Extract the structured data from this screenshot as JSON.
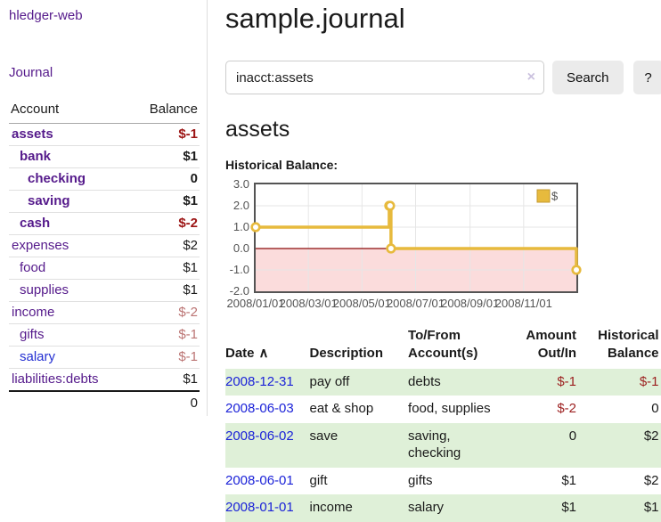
{
  "app": {
    "brand": "hledger-web",
    "nav": {
      "journal": "Journal"
    }
  },
  "sidebar": {
    "header": {
      "account": "Account",
      "balance": "Balance"
    },
    "accounts": [
      {
        "name": "assets",
        "balance": "$-1",
        "indent": 1,
        "bold": true,
        "neg": "strong"
      },
      {
        "name": "bank",
        "balance": "$1",
        "indent": 2,
        "bold": true,
        "neg": "none"
      },
      {
        "name": "checking",
        "balance": "0",
        "indent": 3,
        "bold": true,
        "neg": "none"
      },
      {
        "name": "saving",
        "balance": "$1",
        "indent": 3,
        "bold": true,
        "neg": "none"
      },
      {
        "name": "cash",
        "balance": "$-2",
        "indent": 2,
        "bold": true,
        "neg": "strong"
      },
      {
        "name": "expenses",
        "balance": "$2",
        "indent": 1,
        "bold": false,
        "neg": "none"
      },
      {
        "name": "food",
        "balance": "$1",
        "indent": 2,
        "bold": false,
        "neg": "none"
      },
      {
        "name": "supplies",
        "balance": "$1",
        "indent": 2,
        "bold": false,
        "neg": "none"
      },
      {
        "name": "income",
        "balance": "$-2",
        "indent": 1,
        "bold": false,
        "neg": "soft"
      },
      {
        "name": "gifts",
        "balance": "$-1",
        "indent": 2,
        "bold": false,
        "neg": "soft"
      },
      {
        "name": "salary",
        "balance": "$-1",
        "indent": 2,
        "bold": false,
        "neg": "soft",
        "blue": true
      },
      {
        "name": "liabilities:debts",
        "balance": "$1",
        "indent": 1,
        "bold": false,
        "neg": "none"
      }
    ],
    "total": "0"
  },
  "main": {
    "title": "sample.journal",
    "search": {
      "value": "inacct:assets",
      "clear_icon": "×",
      "button_label": "Search",
      "help_label": "?"
    },
    "account_heading": "assets",
    "chart_heading": "Historical Balance:"
  },
  "chart_data": {
    "type": "line",
    "style": "step",
    "title": "Historical Balance",
    "legend": "$",
    "legend_position": "top-right",
    "grid": true,
    "ylim": [
      -2.0,
      3.0
    ],
    "yticks": [
      "3.0",
      "2.0",
      "1.0",
      "0.0",
      "-1.0",
      "-2.0"
    ],
    "ytick_values": [
      3,
      2,
      1,
      0,
      -1,
      -2
    ],
    "xticks": [
      "2008/01/01",
      "2008/03/01",
      "2008/05/01",
      "2008/07/01",
      "2008/09/01",
      "2008/11/01"
    ],
    "xtick_days": [
      0,
      60,
      121,
      182,
      244,
      305
    ],
    "x_range_days": 365,
    "series": [
      {
        "name": "$",
        "color": "#e7ba3d",
        "points": [
          {
            "date": "2008-01-01",
            "day": 0,
            "value": 1
          },
          {
            "date": "2008-06-01",
            "day": 152,
            "value": 2
          },
          {
            "date": "2008-06-02",
            "day": 153,
            "value": 2
          },
          {
            "date": "2008-06-03",
            "day": 154,
            "value": 0
          },
          {
            "date": "2008-12-31",
            "day": 365,
            "value": -1
          }
        ]
      }
    ],
    "negative_region_color": "#fbdcdc",
    "zero_line_color": "#8b0b0b",
    "gridline_color": "#e6e6e6"
  },
  "register": {
    "columns": [
      {
        "lines": [
          "Date"
        ],
        "align": "left",
        "sorted": true
      },
      {
        "lines": [
          "Description"
        ],
        "align": "left"
      },
      {
        "lines": [
          "To/From",
          "Account(s)"
        ],
        "align": "left"
      },
      {
        "lines": [
          "Amount",
          "Out/In"
        ],
        "align": "right"
      },
      {
        "lines": [
          "Historical",
          "Balance"
        ],
        "align": "right"
      }
    ],
    "sort_icon": "∧",
    "rows": [
      {
        "date": "2008-12-31",
        "description": "pay off",
        "accounts": "debts",
        "amount": "$-1",
        "balance": "$-1",
        "amount_neg": true,
        "balance_neg": true
      },
      {
        "date": "2008-06-03",
        "description": "eat & shop",
        "accounts": "food, supplies",
        "amount": "$-2",
        "balance": "0",
        "amount_neg": true,
        "balance_neg": false
      },
      {
        "date": "2008-06-02",
        "description": "save",
        "accounts": "saving, checking",
        "amount": "0",
        "balance": "$2",
        "amount_neg": false,
        "balance_neg": false
      },
      {
        "date": "2008-06-01",
        "description": "gift",
        "accounts": "gifts",
        "amount": "$1",
        "balance": "$2",
        "amount_neg": false,
        "balance_neg": false
      },
      {
        "date": "2008-01-01",
        "description": "income",
        "accounts": "salary",
        "amount": "$1",
        "balance": "$1",
        "amount_neg": false,
        "balance_neg": false
      }
    ]
  }
}
